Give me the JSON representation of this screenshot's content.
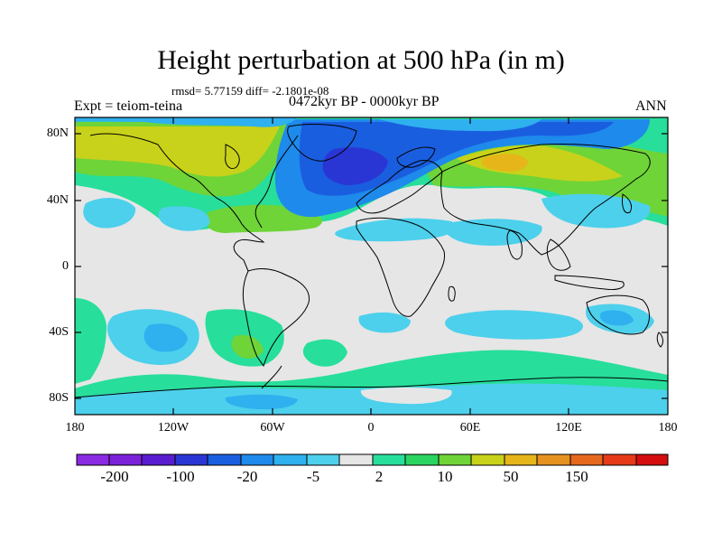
{
  "figure": {
    "title": "Height perturbation at 500 hPa (in m)",
    "stats": "rmsd= 5.77159 diff= -2.1801e-08",
    "experiment": "Expt = teiom-teina",
    "period": "0472kyr BP - 0000kyr BP",
    "season": "ANN"
  },
  "axes": {
    "y_ticks": [
      {
        "key": "lat80n",
        "label": "80N"
      },
      {
        "key": "lat40n",
        "label": "40N"
      },
      {
        "key": "lat0",
        "label": "0"
      },
      {
        "key": "lat40s",
        "label": "40S"
      },
      {
        "key": "lat80s",
        "label": "80S"
      }
    ],
    "x_ticks": [
      {
        "key": "lon180w",
        "label": "180"
      },
      {
        "key": "lon120w",
        "label": "120W"
      },
      {
        "key": "lon60w",
        "label": "60W"
      },
      {
        "key": "lon0",
        "label": "0"
      },
      {
        "key": "lon60e",
        "label": "60E"
      },
      {
        "key": "lon120e",
        "label": "120E"
      },
      {
        "key": "lon180e",
        "label": "180"
      }
    ]
  },
  "colorbar": {
    "colors": [
      "#8a2be2",
      "#7b22d9",
      "#5a1ccf",
      "#2a36d4",
      "#1a5ee0",
      "#1e8aeb",
      "#2fb0ef",
      "#4dd0ec",
      "#e6e6e6",
      "#27de9b",
      "#2ad460",
      "#6fd438",
      "#c8d21a",
      "#e6b51a",
      "#e69220",
      "#e6681e",
      "#e63a18",
      "#d40e0e"
    ],
    "labels": [
      "-200",
      "-100",
      "-20",
      "-5",
      "2",
      "10",
      "50",
      "150"
    ],
    "colors_key": {
      "cb_0": "#8a2be2",
      "cb_1": "#7b22d9",
      "cb_2": "#5a1ccf",
      "cb_3": "#2a36d4",
      "cb_4": "#1a5ee0",
      "cb_5": "#1e8aeb",
      "cb_6": "#2fb0ef",
      "cb_7": "#4dd0ec",
      "cb_8": "#e6e6e6",
      "cb_9": "#27de9b",
      "cb_10": "#2ad460",
      "cb_11": "#6fd438",
      "cb_12": "#c8d21a",
      "cb_13": "#e6b51a",
      "cb_14": "#e69220",
      "cb_15": "#e6681e",
      "cb_16": "#e63a18",
      "cb_17": "#d40e0e"
    }
  },
  "field_colors": {
    "neutral": "#e6e6e6",
    "light_cyan": "#4dd0ec",
    "sky": "#2fb0ef",
    "blue": "#1e8aeb",
    "deep_blue": "#1a5ee0",
    "green": "#27de9b",
    "yellow_green": "#6fd438",
    "olive": "#c8d21a",
    "gold": "#e6b51a",
    "coastline": "#000000"
  }
}
